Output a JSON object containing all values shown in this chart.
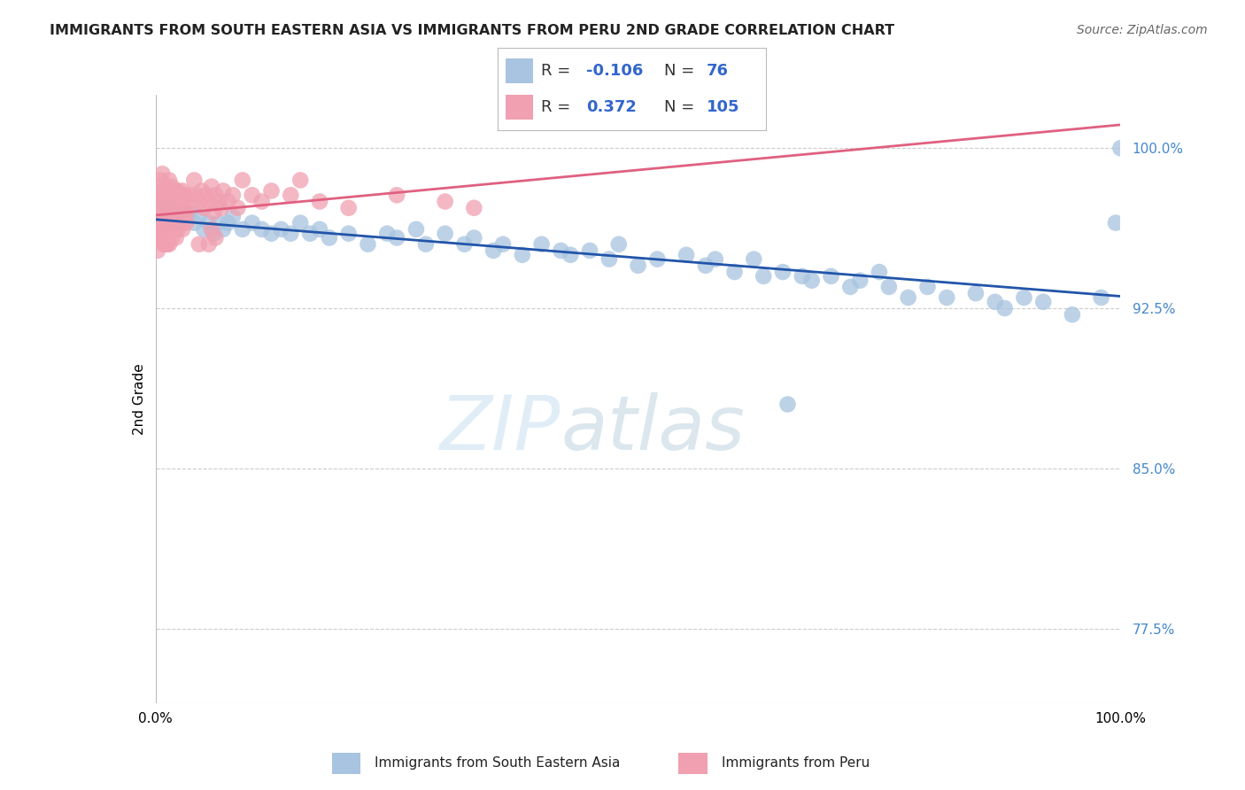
{
  "title": "IMMIGRANTS FROM SOUTH EASTERN ASIA VS IMMIGRANTS FROM PERU 2ND GRADE CORRELATION CHART",
  "source": "Source: ZipAtlas.com",
  "ylabel": "2nd Grade",
  "y_ticks": [
    77.5,
    85.0,
    92.5,
    100.0
  ],
  "y_tick_labels": [
    "77.5%",
    "85.0%",
    "92.5%",
    "100.0%"
  ],
  "xlim": [
    0.0,
    100.0
  ],
  "ylim": [
    74.0,
    102.5
  ],
  "blue_color": "#a8c4e0",
  "pink_color": "#f0a0b0",
  "blue_line_color": "#2255aa",
  "pink_line_color": "#e06080",
  "background_color": "#ffffff",
  "blue_scatter_x": [
    0.5,
    0.8,
    1.0,
    1.2,
    1.5,
    1.8,
    2.0,
    2.5,
    3.0,
    3.5,
    4.0,
    4.5,
    5.0,
    5.5,
    6.0,
    6.5,
    7.0,
    7.5,
    8.0,
    9.0,
    10.0,
    11.0,
    12.0,
    13.0,
    14.0,
    15.0,
    16.0,
    17.0,
    18.0,
    20.0,
    22.0,
    24.0,
    25.0,
    27.0,
    28.0,
    30.0,
    32.0,
    33.0,
    35.0,
    36.0,
    38.0,
    40.0,
    42.0,
    43.0,
    45.0,
    47.0,
    48.0,
    50.0,
    52.0,
    55.0,
    57.0,
    58.0,
    60.0,
    62.0,
    63.0,
    65.0,
    67.0,
    68.0,
    70.0,
    72.0,
    73.0,
    75.0,
    76.0,
    78.0,
    80.0,
    82.0,
    85.0,
    87.0,
    88.0,
    90.0,
    92.0,
    95.0,
    98.0,
    99.5,
    100.0,
    65.5
  ],
  "blue_scatter_y": [
    97.2,
    96.8,
    97.0,
    96.5,
    97.2,
    96.8,
    97.0,
    96.5,
    96.8,
    97.0,
    96.5,
    96.8,
    96.2,
    96.5,
    96.0,
    96.5,
    96.2,
    96.5,
    96.8,
    96.2,
    96.5,
    96.2,
    96.0,
    96.2,
    96.0,
    96.5,
    96.0,
    96.2,
    95.8,
    96.0,
    95.5,
    96.0,
    95.8,
    96.2,
    95.5,
    96.0,
    95.5,
    95.8,
    95.2,
    95.5,
    95.0,
    95.5,
    95.2,
    95.0,
    95.2,
    94.8,
    95.5,
    94.5,
    94.8,
    95.0,
    94.5,
    94.8,
    94.2,
    94.8,
    94.0,
    94.2,
    94.0,
    93.8,
    94.0,
    93.5,
    93.8,
    94.2,
    93.5,
    93.0,
    93.5,
    93.0,
    93.2,
    92.8,
    92.5,
    93.0,
    92.8,
    92.2,
    93.0,
    96.5,
    100.0,
    88.0
  ],
  "pink_scatter_x": [
    0.1,
    0.2,
    0.3,
    0.4,
    0.5,
    0.6,
    0.7,
    0.8,
    0.9,
    1.0,
    1.1,
    1.2,
    1.3,
    1.4,
    1.5,
    1.6,
    1.7,
    1.8,
    1.9,
    2.0,
    2.1,
    2.2,
    2.3,
    2.4,
    2.5,
    2.6,
    2.7,
    2.8,
    2.9,
    3.0,
    3.2,
    3.5,
    3.8,
    4.0,
    4.2,
    4.5,
    4.8,
    5.0,
    5.2,
    5.5,
    5.8,
    6.0,
    6.2,
    6.5,
    6.8,
    7.0,
    7.5,
    8.0,
    8.5,
    9.0,
    10.0,
    11.0,
    12.0,
    14.0,
    15.0,
    17.0,
    20.0,
    25.0,
    30.0,
    33.0,
    0.3,
    0.4,
    0.5,
    0.6,
    0.7,
    0.8,
    0.9,
    1.0,
    1.2,
    1.5,
    1.8,
    2.0,
    2.2,
    2.5,
    2.8,
    3.0,
    3.2,
    0.5,
    0.6,
    0.7,
    0.8,
    0.9,
    1.0,
    1.1,
    1.2,
    1.4,
    1.5,
    1.7,
    1.9,
    2.1,
    2.3,
    0.2,
    0.3,
    0.4,
    0.5,
    0.6,
    0.7,
    0.8,
    1.0,
    1.2,
    1.5,
    5.5,
    5.8,
    6.2,
    4.5
  ],
  "pink_scatter_y": [
    97.5,
    97.8,
    98.2,
    97.5,
    98.5,
    97.0,
    98.8,
    97.2,
    98.0,
    97.5,
    98.2,
    97.8,
    97.2,
    98.5,
    97.0,
    97.8,
    98.2,
    97.5,
    97.0,
    98.0,
    97.5,
    97.2,
    98.0,
    97.5,
    97.8,
    97.2,
    97.5,
    98.0,
    97.2,
    97.8,
    97.0,
    97.8,
    97.5,
    98.5,
    97.8,
    97.5,
    98.0,
    97.2,
    97.8,
    97.5,
    98.2,
    97.0,
    97.8,
    97.5,
    97.2,
    98.0,
    97.5,
    97.8,
    97.2,
    98.5,
    97.8,
    97.5,
    98.0,
    97.8,
    98.5,
    97.5,
    97.2,
    97.8,
    97.5,
    97.2,
    96.5,
    96.8,
    96.2,
    96.8,
    96.5,
    96.2,
    96.8,
    96.5,
    96.2,
    97.0,
    96.5,
    96.2,
    96.8,
    96.5,
    96.2,
    96.8,
    96.5,
    95.8,
    96.2,
    95.8,
    96.2,
    95.5,
    96.0,
    95.5,
    96.8,
    95.5,
    96.2,
    95.8,
    96.2,
    95.8,
    96.2,
    95.2,
    96.5,
    95.8,
    96.2,
    95.8,
    96.2,
    95.5,
    96.0,
    95.5,
    96.8,
    95.5,
    96.2,
    95.8,
    95.5
  ]
}
